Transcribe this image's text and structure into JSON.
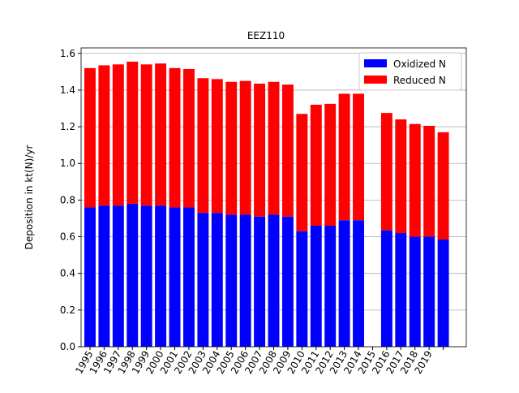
{
  "chart_data": {
    "type": "bar",
    "stacked": true,
    "title": "EEZ110",
    "y_label": "Deposition in kt(N)/yr",
    "categories": [
      "1995",
      "1996",
      "1997",
      "1998",
      "1999",
      "2000",
      "2001",
      "2002",
      "2003",
      "2004",
      "2005",
      "2006",
      "2007",
      "2008",
      "2009",
      "2010",
      "2011",
      "2012",
      "2013",
      "2014",
      "2015",
      "2016",
      "2017",
      "2018",
      "2019",
      null
    ],
    "series": [
      {
        "name": "Oxidized N",
        "color": "#0000ff",
        "values": [
          0.76,
          0.77,
          0.77,
          0.78,
          0.77,
          0.77,
          0.76,
          0.76,
          0.73,
          0.73,
          0.72,
          0.72,
          0.71,
          0.72,
          0.71,
          0.63,
          0.66,
          0.66,
          0.69,
          0.69,
          null,
          0.635,
          0.62,
          0.6,
          0.6,
          0.585
        ]
      },
      {
        "name": "Reduced N",
        "color": "#ff0000",
        "values": [
          0.76,
          0.765,
          0.77,
          0.775,
          0.77,
          0.775,
          0.76,
          0.755,
          0.735,
          0.73,
          0.725,
          0.73,
          0.725,
          0.725,
          0.72,
          0.64,
          0.66,
          0.665,
          0.69,
          0.69,
          null,
          0.64,
          0.62,
          0.615,
          0.605,
          0.585
        ]
      }
    ],
    "ylim": [
      0,
      1.63
    ],
    "yticks": [
      {
        "value": 0,
        "label": "0.0"
      },
      {
        "value": 0.2,
        "label": "0.2"
      },
      {
        "value": 0.4,
        "label": "0.4"
      },
      {
        "value": 0.6,
        "label": "0.6"
      },
      {
        "value": 0.8,
        "label": "0.8"
      },
      {
        "value": 1,
        "label": "1.0"
      },
      {
        "value": 1.2,
        "label": "1.2"
      },
      {
        "value": 1.4,
        "label": "1.4"
      },
      {
        "value": 1.6,
        "label": "1.6"
      }
    ],
    "grid": true,
    "legend": "upper right"
  }
}
